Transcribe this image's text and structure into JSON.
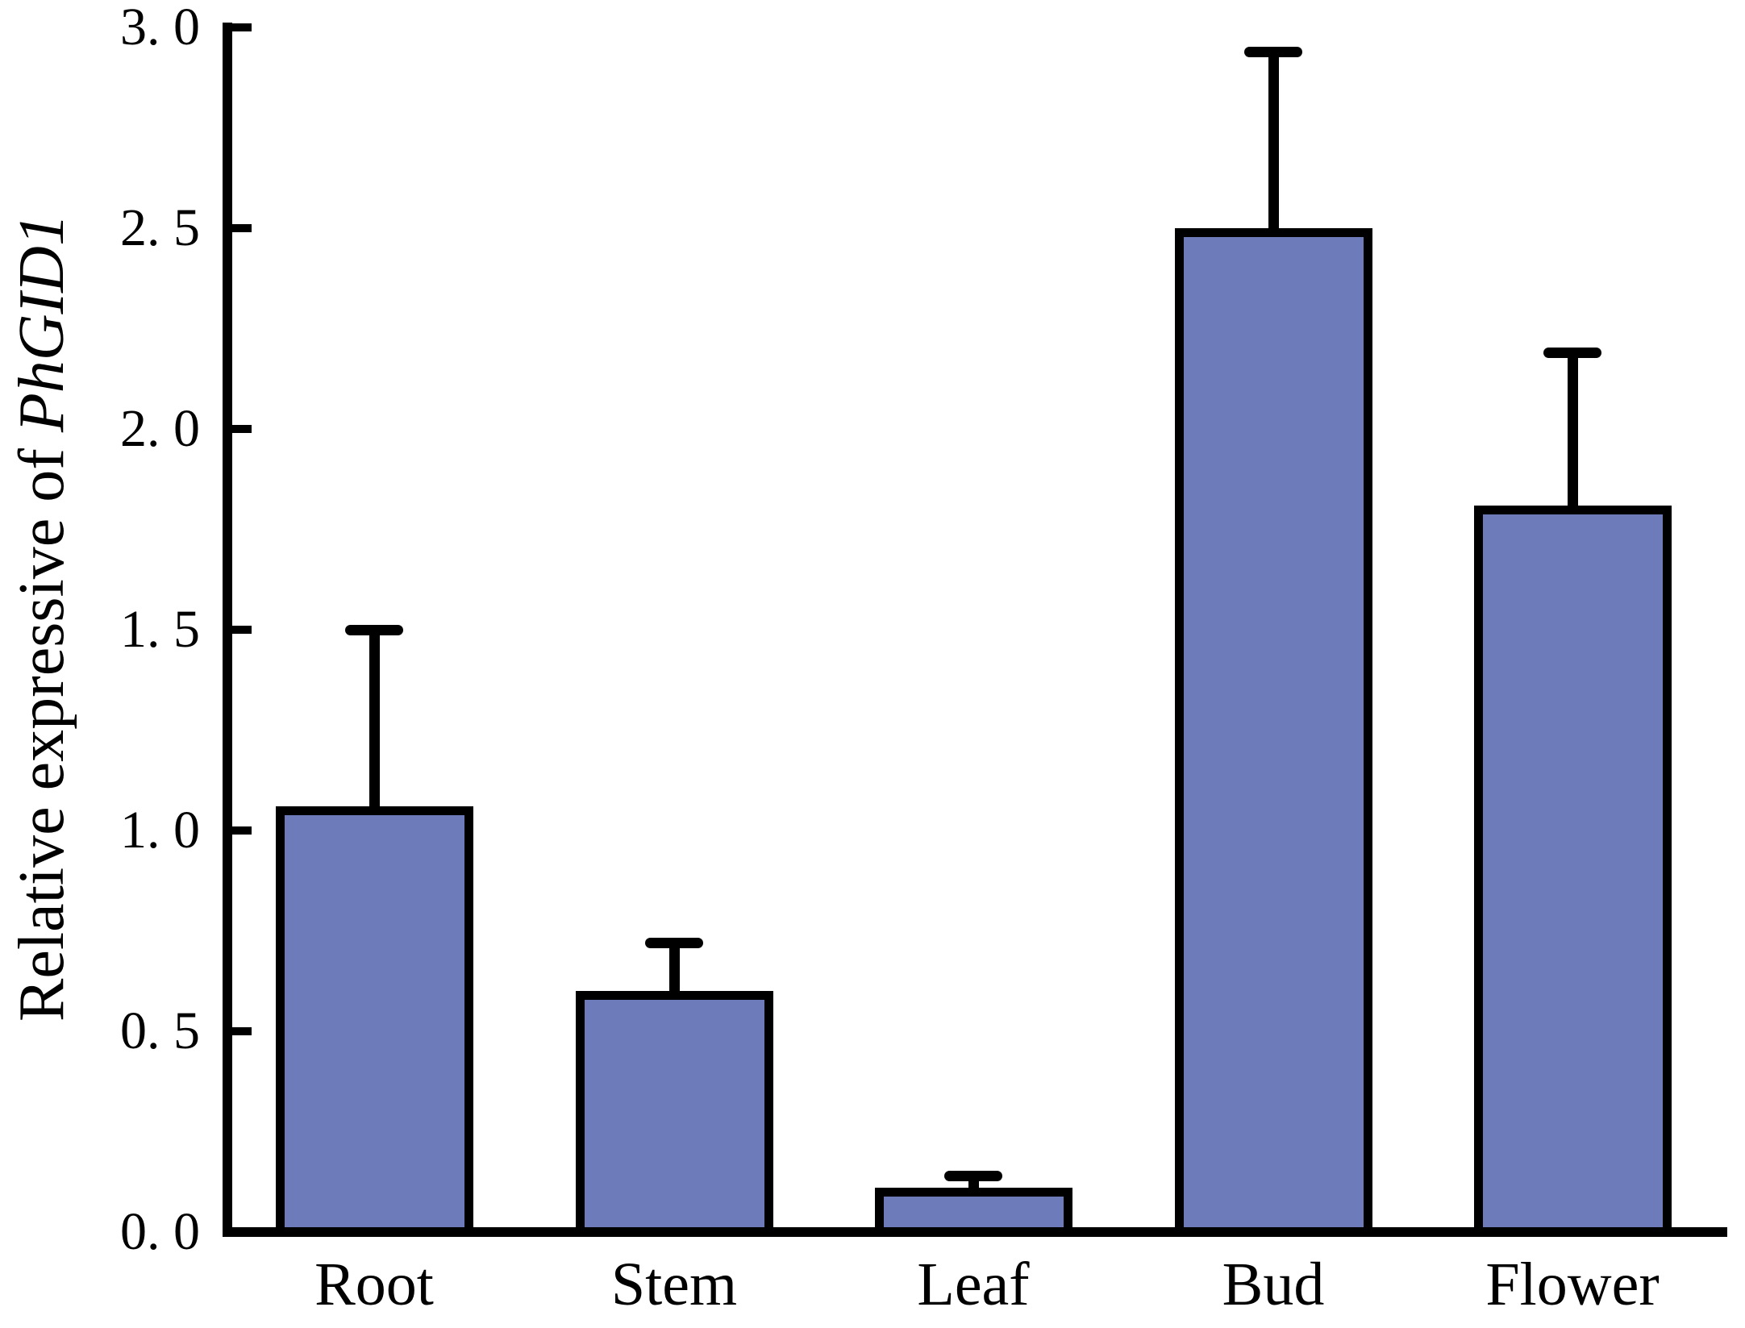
{
  "chart_data": {
    "type": "bar",
    "title": "",
    "ylabel_regular": "Relative expressive of ",
    "ylabel_italic": "PhGID1",
    "xlabel": "",
    "categories": [
      "Root",
      "Stem",
      "Leaf",
      "Bud",
      "Flower"
    ],
    "values": [
      1.05,
      0.59,
      0.1,
      2.49,
      1.8
    ],
    "errors_plus": [
      0.45,
      0.13,
      0.04,
      0.45,
      0.39
    ],
    "ylim": [
      0.0,
      3.0
    ],
    "y_ticks": [
      0.0,
      0.5,
      1.0,
      1.5,
      2.0,
      2.5,
      3.0
    ],
    "y_tick_labels": [
      "0. 0",
      "0. 5",
      "1. 0",
      "1. 5",
      "2. 0",
      "2. 5",
      "3. 0"
    ],
    "grid": false,
    "legend": "none",
    "bar_color": "#6E7BBA",
    "bar_edge_color": "#000000",
    "axis_color": "#000000",
    "error_bar_style": "upper caps only"
  }
}
